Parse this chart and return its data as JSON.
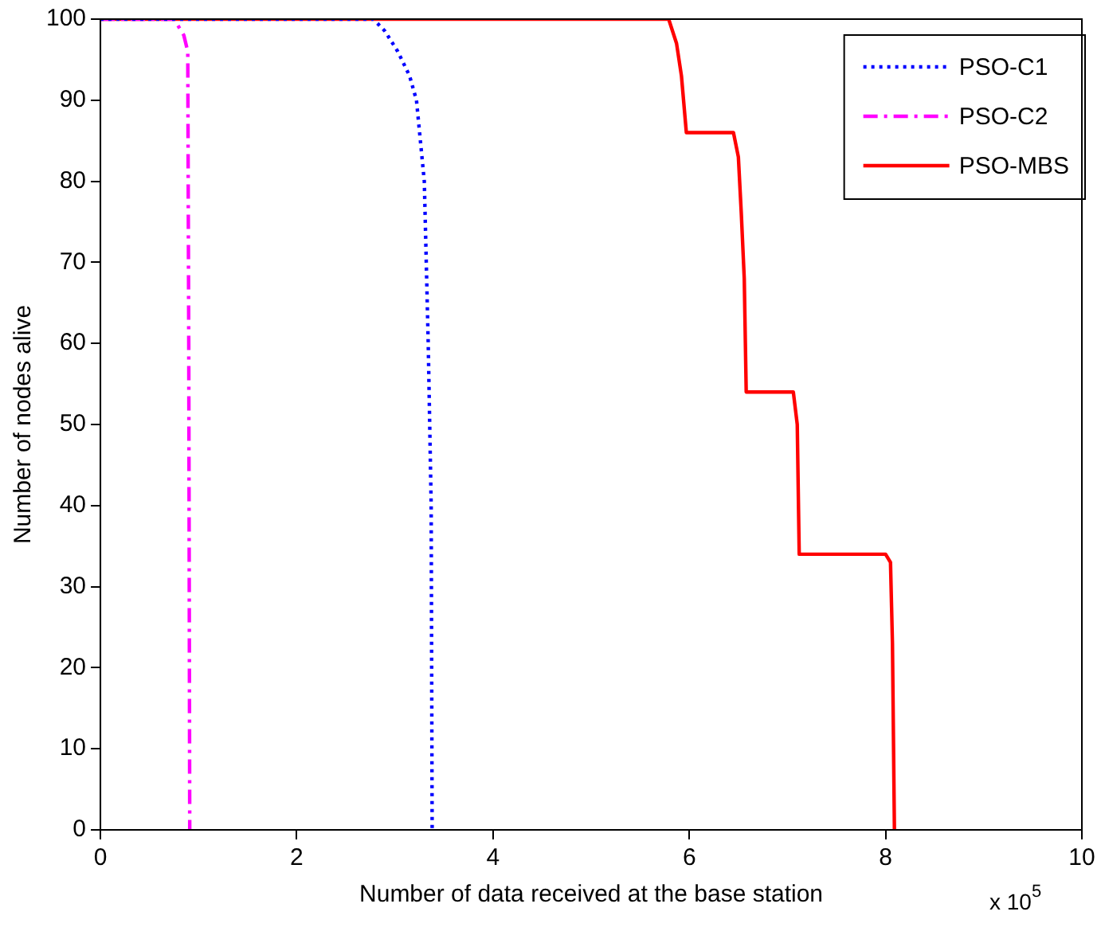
{
  "chart_data": {
    "type": "line",
    "xlabel": "Number of data received at the base station",
    "ylabel": "Number of nodes alive",
    "annotations": [
      "x 10$^{5}$"
    ],
    "xlim": [
      0,
      10
    ],
    "xticks": [
      0,
      2,
      4,
      6,
      8,
      10
    ],
    "ylim": [
      0,
      100
    ],
    "yticks": [
      0,
      10,
      20,
      30,
      40,
      50,
      60,
      70,
      80,
      90,
      100
    ],
    "grid": false,
    "legend": "top right",
    "marker": "none",
    "series": [
      {
        "name": "PSO-C1",
        "color": "#0000ff",
        "line_style": "dotted",
        "x": [
          0,
          2.78,
          2.9,
          3.03,
          3.15,
          3.22,
          3.3,
          3.34,
          3.37,
          3.38
        ],
        "values": [
          100,
          100,
          98.5,
          96,
          93,
          90,
          80,
          60,
          40,
          0
        ]
      },
      {
        "name": "PSO-C2",
        "color": "#ff00ff",
        "line_style": "dashed",
        "x": [
          0,
          0.75,
          0.85,
          0.89,
          0.9,
          0.91
        ],
        "values": [
          100,
          100,
          98,
          96,
          60,
          0
        ]
      },
      {
        "name": "PSO-MBS",
        "color": "#ff0000",
        "line_style": "solid",
        "x": [
          0,
          5.79,
          5.87,
          5.92,
          5.97,
          6.45,
          6.5,
          6.53,
          6.56,
          6.58,
          7.06,
          7.1,
          7.12,
          8.0,
          8.05,
          8.07,
          8.09
        ],
        "values": [
          100,
          100,
          97,
          93,
          86,
          86,
          83,
          76,
          68,
          54,
          54,
          50,
          34,
          34,
          33,
          23,
          0
        ]
      }
    ]
  }
}
